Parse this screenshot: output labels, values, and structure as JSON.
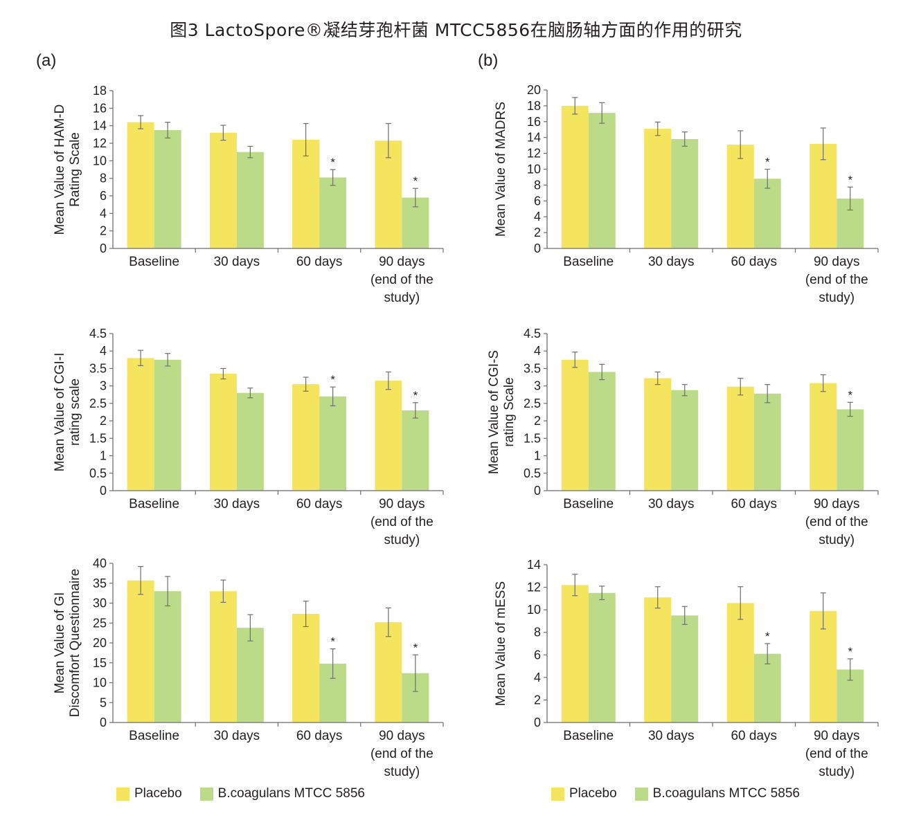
{
  "title": "图3 LactoSpore®凝结芽孢杆菌 MTCC5856在脑肠轴方面的作用的研究",
  "panels": {
    "a": "(a)",
    "b": "(b)"
  },
  "colors": {
    "placebo": "#f5e45e",
    "bcoagulans": "#bcdb88",
    "axis": "#6d6e71",
    "error": "#6d6e71"
  },
  "legend": {
    "a": [
      {
        "label": "Placebo",
        "color": "#f5e45e"
      },
      {
        "label": "B.coagulans MTCC 5856",
        "color": "#bcdb88"
      }
    ],
    "b": [
      {
        "label": "Placebo",
        "color": "#f5e45e"
      },
      {
        "label": "B.coagulans MTCC 5856",
        "color": "#bcdb88"
      }
    ]
  },
  "chart_data": [
    {
      "type": "bar",
      "panel": "a",
      "ylabel": [
        "Mean Value of HAM-D",
        "Rating Scale"
      ],
      "categories": [
        [
          "Baseline"
        ],
        [
          "30 days"
        ],
        [
          "60 days"
        ],
        [
          "90 days",
          "(end of the",
          "study)"
        ]
      ],
      "ylim": [
        0,
        18
      ],
      "yticks": [
        "0",
        "2",
        "4",
        "6",
        "8",
        "10",
        "12",
        "14",
        "16",
        "18"
      ],
      "series": [
        {
          "name": "Placebo",
          "values": [
            14.4,
            13.2,
            12.4,
            12.3
          ],
          "errors": [
            0.75,
            0.85,
            1.85,
            1.95
          ],
          "significant": [
            false,
            false,
            false,
            false
          ]
        },
        {
          "name": "B.coagulans MTCC 5856",
          "values": [
            13.5,
            11.0,
            8.1,
            5.8
          ],
          "errors": [
            0.9,
            0.65,
            0.9,
            1.05
          ],
          "significant": [
            false,
            false,
            true,
            true
          ]
        }
      ]
    },
    {
      "type": "bar",
      "panel": "b",
      "ylabel": [
        "Mean Value of MADRS"
      ],
      "categories": [
        [
          "Baseline"
        ],
        [
          "30 days"
        ],
        [
          "60 days"
        ],
        [
          "90 days",
          "(end of the",
          "study)"
        ]
      ],
      "ylim": [
        0,
        20
      ],
      "yticks": [
        "0",
        "2",
        "4",
        "6",
        "8",
        "10",
        "12",
        "14",
        "16",
        "18",
        "20"
      ],
      "series": [
        {
          "name": "Placebo",
          "values": [
            18.0,
            15.1,
            13.1,
            13.2
          ],
          "errors": [
            1.05,
            0.85,
            1.75,
            2.0
          ],
          "significant": [
            false,
            false,
            false,
            false
          ]
        },
        {
          "name": "B.coagulans MTCC 5856",
          "values": [
            17.1,
            13.8,
            8.8,
            6.3
          ],
          "errors": [
            1.3,
            0.9,
            1.2,
            1.45
          ],
          "significant": [
            false,
            false,
            true,
            true
          ]
        }
      ]
    },
    {
      "type": "bar",
      "panel": "a",
      "ylabel": [
        "Mean Value of CGI-I",
        "rating scale"
      ],
      "categories": [
        [
          "Baseline"
        ],
        [
          "30 days"
        ],
        [
          "60 days"
        ],
        [
          "90 days",
          "(end of the",
          "study)"
        ]
      ],
      "ylim": [
        0,
        4.5
      ],
      "yticks": [
        "0",
        "0.5",
        "1",
        "1.5",
        "2",
        "2.5",
        "3",
        "3.5",
        "4",
        "4.5"
      ],
      "series": [
        {
          "name": "Placebo",
          "values": [
            3.8,
            3.35,
            3.05,
            3.15
          ],
          "errors": [
            0.22,
            0.15,
            0.2,
            0.25
          ],
          "significant": [
            false,
            false,
            false,
            false
          ]
        },
        {
          "name": "B.coagulans MTCC 5856",
          "values": [
            3.75,
            2.8,
            2.7,
            2.3
          ],
          "errors": [
            0.18,
            0.14,
            0.27,
            0.22
          ],
          "significant": [
            false,
            false,
            true,
            true
          ]
        }
      ]
    },
    {
      "type": "bar",
      "panel": "b",
      "ylabel": [
        "Mean Value of CGI-S",
        "rating Scale"
      ],
      "categories": [
        [
          "Baseline"
        ],
        [
          "30 days"
        ],
        [
          "60 days"
        ],
        [
          "90 days",
          "(end of the",
          "study)"
        ]
      ],
      "ylim": [
        0,
        4.5
      ],
      "yticks": [
        "0",
        "0.5",
        "1",
        "1.5",
        "2",
        "2.5",
        "3",
        "3.5",
        "4",
        "4.5"
      ],
      "series": [
        {
          "name": "Placebo",
          "values": [
            3.75,
            3.22,
            2.98,
            3.08
          ],
          "errors": [
            0.22,
            0.18,
            0.24,
            0.24
          ],
          "significant": [
            false,
            false,
            false,
            false
          ]
        },
        {
          "name": "B.coagulans MTCC 5856",
          "values": [
            3.4,
            2.88,
            2.78,
            2.33
          ],
          "errors": [
            0.22,
            0.16,
            0.26,
            0.2
          ],
          "significant": [
            false,
            false,
            false,
            true
          ]
        }
      ]
    },
    {
      "type": "bar",
      "panel": "a",
      "ylabel": [
        "Mean Value of GI",
        "Discomfort Questionnaire"
      ],
      "categories": [
        [
          "Baseline"
        ],
        [
          "30 days"
        ],
        [
          "60 days"
        ],
        [
          "90 days",
          "(end of the",
          "study)"
        ]
      ],
      "ylim": [
        0,
        40
      ],
      "yticks": [
        "0",
        "5",
        "10",
        "15",
        "20",
        "25",
        "30",
        "35",
        "40"
      ],
      "series": [
        {
          "name": "Placebo",
          "values": [
            35.7,
            33.0,
            27.3,
            25.2
          ],
          "errors": [
            3.5,
            2.8,
            3.2,
            3.6
          ],
          "significant": [
            false,
            false,
            false,
            false
          ]
        },
        {
          "name": "B.coagulans MTCC 5856",
          "values": [
            33.0,
            23.8,
            14.8,
            12.4
          ],
          "errors": [
            3.7,
            3.3,
            3.7,
            4.6
          ],
          "significant": [
            false,
            false,
            true,
            true
          ]
        }
      ]
    },
    {
      "type": "bar",
      "panel": "b",
      "ylabel": [
        "Mean Value of mESS"
      ],
      "categories": [
        [
          "Baseline"
        ],
        [
          "30 days"
        ],
        [
          "60 days"
        ],
        [
          "90 days",
          "(end of the",
          "study)"
        ]
      ],
      "ylim": [
        0,
        14
      ],
      "yticks": [
        "0",
        "2",
        "4",
        "6",
        "8",
        "10",
        "12",
        "14"
      ],
      "series": [
        {
          "name": "Placebo",
          "values": [
            12.2,
            11.1,
            10.6,
            9.9
          ],
          "errors": [
            0.95,
            0.95,
            1.45,
            1.6
          ],
          "significant": [
            false,
            false,
            false,
            false
          ]
        },
        {
          "name": "B.coagulans MTCC 5856",
          "values": [
            11.5,
            9.5,
            6.1,
            4.7
          ],
          "errors": [
            0.6,
            0.8,
            0.9,
            0.95
          ],
          "significant": [
            false,
            false,
            true,
            true
          ]
        }
      ]
    }
  ]
}
